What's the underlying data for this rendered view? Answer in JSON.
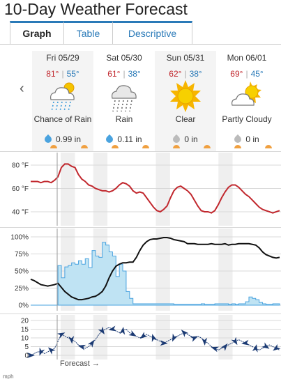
{
  "page": {
    "title": "10-Day Weather Forecast"
  },
  "tabs": [
    {
      "label": "Graph",
      "active": true
    },
    {
      "label": "Table",
      "active": false
    },
    {
      "label": "Descriptive",
      "active": false
    }
  ],
  "nav": {
    "prev_icon": "chevron-left-icon"
  },
  "days": [
    {
      "date": "Fri 05/29",
      "hi": "81°",
      "lo": "55°",
      "condition": "Chance of Rain",
      "icon": "chance-of-rain-icon",
      "precip": "0.99 in",
      "drop_color": "#4aa3df"
    },
    {
      "date": "Sat 05/30",
      "hi": "61°",
      "lo": "38°",
      "condition": "Rain",
      "icon": "rain-icon",
      "precip": "0.11 in",
      "drop_color": "#4aa3df"
    },
    {
      "date": "Sun 05/31",
      "hi": "62°",
      "lo": "38°",
      "condition": "Clear",
      "icon": "sun-icon",
      "precip": "0 in",
      "drop_color": "#bbbbbb"
    },
    {
      "date": "Mon 06/01",
      "hi": "69°",
      "lo": "45°",
      "condition": "Partly Cloudy",
      "icon": "partly-cloudy-icon",
      "precip": "0 in",
      "drop_color": "#bbbbbb"
    }
  ],
  "colors": {
    "temperature": "#c1272d",
    "cloud_cover": "#111111",
    "precip_chance": "#4aa3df",
    "precip_fill": "#bfe3f3",
    "wind": "#1b3a73",
    "night_shade": "#efefef"
  },
  "forecast_label": "Forecast →",
  "bottom_mark": "mph",
  "chart_data": [
    {
      "type": "line",
      "name": "temperature",
      "ylabel_unit": "°F",
      "yticks": [
        "80 °F",
        "60 °F",
        "40 °F"
      ],
      "ytick_values": [
        80,
        60,
        40
      ],
      "ylim": [
        34,
        86
      ],
      "x_hours": [
        0,
        4,
        8,
        12,
        16,
        20,
        24,
        28,
        32,
        36,
        40,
        44,
        48,
        52,
        56,
        60,
        64,
        68,
        72,
        76,
        80,
        84,
        88,
        92,
        96,
        100,
        104,
        108,
        112,
        116,
        120,
        124,
        128,
        132,
        136,
        140,
        144,
        148,
        152,
        156,
        160,
        164,
        168,
        172,
        176,
        180,
        184,
        188,
        192,
        196,
        200,
        204,
        208,
        212,
        216,
        220,
        224,
        228,
        232,
        236,
        240,
        244,
        248,
        252,
        256,
        260,
        264,
        268,
        272,
        276,
        280,
        284,
        288,
        292
      ],
      "values": [
        66,
        66,
        66,
        65,
        66,
        66,
        65,
        67,
        70,
        78,
        81,
        81,
        79,
        78,
        72,
        68,
        66,
        63,
        62,
        60,
        59,
        58,
        58,
        57,
        58,
        60,
        63,
        65,
        64,
        62,
        58,
        56,
        57,
        56,
        52,
        48,
        44,
        41,
        40,
        42,
        45,
        52,
        58,
        61,
        62,
        60,
        58,
        55,
        50,
        45,
        41,
        40,
        40,
        39,
        41,
        46,
        52,
        57,
        61,
        63,
        63,
        61,
        58,
        55,
        53,
        50,
        47,
        44,
        42,
        41,
        40,
        39,
        40,
        41
      ]
    },
    {
      "type": "area",
      "name": "cloud-cover-and-precip-chance",
      "yticks": [
        "100%",
        "75%",
        "50%",
        "25%",
        "0%"
      ],
      "ytick_values": [
        100,
        75,
        50,
        25,
        0
      ],
      "ylim": [
        0,
        100
      ],
      "x_hours": [
        0,
        4,
        8,
        12,
        16,
        20,
        24,
        28,
        32,
        36,
        40,
        44,
        48,
        52,
        56,
        60,
        64,
        68,
        72,
        76,
        80,
        84,
        88,
        92,
        96,
        100,
        104,
        108,
        112,
        116,
        120,
        124,
        128,
        132,
        136,
        140,
        144,
        148,
        152,
        156,
        160,
        164,
        168,
        172,
        176,
        180,
        184,
        188,
        192,
        196,
        200,
        204,
        208,
        212,
        216,
        220,
        224,
        228,
        232,
        236,
        240,
        244,
        248,
        252,
        256,
        260,
        264,
        268,
        272,
        276,
        280,
        284,
        288,
        292
      ],
      "cloud_cover": [
        38,
        36,
        33,
        30,
        29,
        28,
        29,
        30,
        32,
        26,
        20,
        16,
        12,
        10,
        8,
        8,
        9,
        10,
        12,
        13,
        16,
        20,
        28,
        40,
        50,
        57,
        60,
        62,
        62,
        63,
        63,
        70,
        80,
        88,
        93,
        96,
        97,
        97,
        98,
        99,
        99,
        98,
        96,
        95,
        94,
        93,
        90,
        90,
        90,
        89,
        89,
        89,
        89,
        90,
        89,
        89,
        89,
        90,
        88,
        89,
        89,
        90,
        90,
        90,
        90,
        89,
        88,
        84,
        78,
        74,
        72,
        70,
        69,
        70
      ],
      "precip_chance": [
        0,
        0,
        0,
        0,
        0,
        0,
        0,
        0,
        58,
        40,
        56,
        58,
        62,
        60,
        65,
        60,
        68,
        55,
        80,
        72,
        70,
        92,
        88,
        78,
        72,
        42,
        60,
        50,
        20,
        10,
        2,
        2,
        2,
        2,
        2,
        2,
        2,
        2,
        2,
        2,
        2,
        2,
        1,
        1,
        1,
        1,
        1,
        1,
        1,
        1,
        2,
        1,
        1,
        1,
        2,
        2,
        2,
        2,
        1,
        2,
        1,
        2,
        2,
        5,
        12,
        10,
        8,
        4,
        2,
        1,
        1,
        2,
        2,
        1
      ]
    },
    {
      "type": "line",
      "name": "wind",
      "yticks": [
        "20",
        "15",
        "10",
        "5",
        "0"
      ],
      "ytick_values": [
        20,
        15,
        10,
        5,
        0
      ],
      "ylim": [
        0,
        20
      ],
      "x_hours": [
        0,
        4,
        8,
        12,
        16,
        20,
        24,
        28,
        32,
        36,
        40,
        44,
        48,
        52,
        56,
        60,
        64,
        68,
        72,
        76,
        80,
        84,
        88,
        92,
        96,
        100,
        104,
        108,
        112,
        116,
        120,
        124,
        128,
        132,
        136,
        140,
        144,
        148,
        152,
        156,
        160,
        164,
        168,
        172,
        176,
        180,
        184,
        188,
        192,
        196,
        200,
        204,
        208,
        212,
        216,
        220,
        224,
        228,
        232,
        236,
        240,
        244,
        248,
        252,
        256,
        260,
        264,
        268,
        272,
        276,
        280,
        284,
        288,
        292
      ],
      "values": [
        0,
        1,
        2,
        2,
        1,
        2,
        3,
        4,
        8,
        12,
        11,
        10,
        9,
        8,
        6,
        5,
        4,
        5,
        7,
        9,
        12,
        14,
        15,
        16,
        15,
        14,
        13,
        14,
        15,
        13,
        12,
        11,
        10,
        11,
        12,
        11,
        10,
        9,
        8,
        7,
        8,
        9,
        10,
        11,
        12,
        13,
        12,
        11,
        10,
        11,
        10,
        8,
        7,
        5,
        4,
        3,
        4,
        5,
        6,
        7,
        8,
        9,
        8,
        7,
        6,
        5,
        4,
        3,
        4,
        5,
        6,
        5,
        4,
        3
      ],
      "arrow_every": 3
    }
  ]
}
